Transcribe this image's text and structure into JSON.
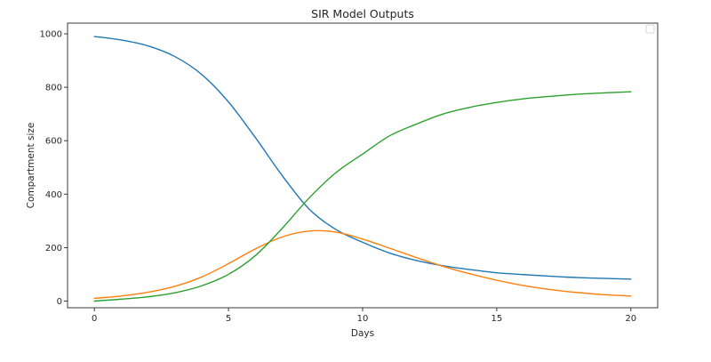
{
  "chart_data": {
    "type": "line",
    "title": "SIR Model Outputs",
    "xlabel": "Days",
    "ylabel": "Compartment size",
    "xlim": [
      -1,
      21
    ],
    "ylim": [
      -25,
      1040
    ],
    "xticks": [
      0,
      5,
      10,
      15,
      20
    ],
    "yticks": [
      0,
      200,
      400,
      600,
      800,
      1000
    ],
    "grid": false,
    "legend": "top-right",
    "x": [
      0,
      1,
      2,
      3,
      4,
      5,
      6,
      7,
      8,
      9,
      10,
      11,
      12,
      13,
      14,
      15,
      16,
      17,
      18,
      19,
      20
    ],
    "series": [
      {
        "color": "#1f77b4",
        "values": [
          990,
          977,
          955,
          915,
          848,
          745,
          612,
          470,
          345,
          268,
          220,
          180,
          152,
          132,
          118,
          106,
          99,
          93,
          88,
          85,
          82
        ]
      },
      {
        "color": "#ff7f0e",
        "values": [
          10,
          19,
          33,
          55,
          90,
          140,
          195,
          240,
          262,
          258,
          232,
          198,
          163,
          130,
          102,
          78,
          58,
          43,
          32,
          24,
          19
        ]
      },
      {
        "color": "#2ca02c",
        "values": [
          0,
          7,
          16,
          31,
          57,
          100,
          170,
          272,
          385,
          480,
          550,
          618,
          662,
          700,
          725,
          743,
          757,
          766,
          774,
          779,
          783
        ]
      }
    ]
  }
}
